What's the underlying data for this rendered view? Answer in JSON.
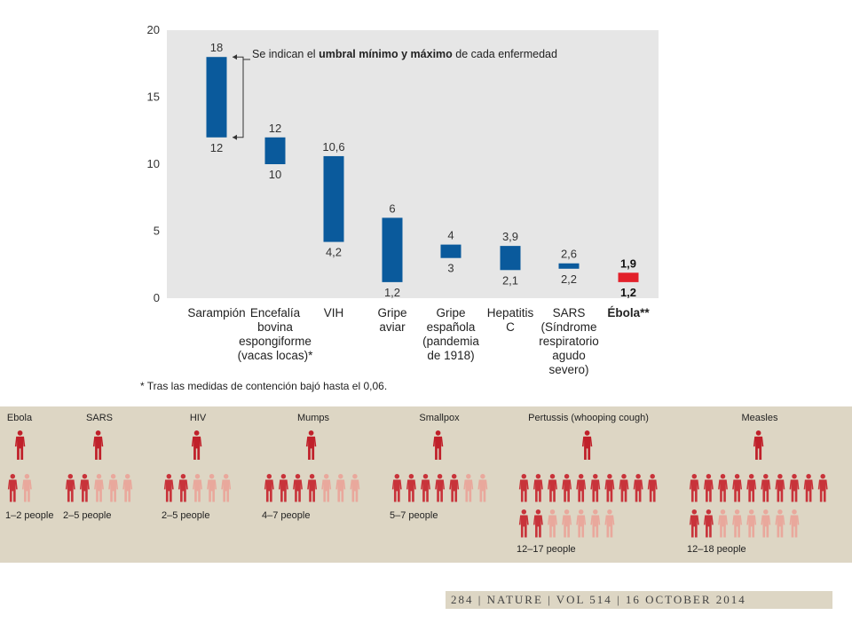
{
  "chart_data": [
    {
      "type": "bar",
      "subtype": "floating-range",
      "ylim": [
        0,
        20
      ],
      "yticks": [
        0,
        5,
        10,
        15,
        20
      ],
      "grid": false,
      "annotation": {
        "prefix": "Se indican el ",
        "bold": "umbral mínimo y máximo",
        "suffix": " de cada enfermedad"
      },
      "categories": [
        {
          "lines": [
            "Sarampión"
          ],
          "min": 12,
          "max": 18,
          "min_label": "12",
          "max_label": "18",
          "color": "#0a5a9c"
        },
        {
          "lines": [
            "Encefalía",
            "bovina",
            "espongiforme",
            "(vacas locas)*"
          ],
          "min": 10,
          "max": 12,
          "min_label": "10",
          "max_label": "12",
          "color": "#0a5a9c"
        },
        {
          "lines": [
            "VIH"
          ],
          "min": 4.2,
          "max": 10.6,
          "min_label": "4,2",
          "max_label": "10,6",
          "color": "#0a5a9c"
        },
        {
          "lines": [
            "Gripe",
            "aviar"
          ],
          "min": 1.2,
          "max": 6,
          "min_label": "1,2",
          "max_label": "6",
          "color": "#0a5a9c"
        },
        {
          "lines": [
            "Gripe",
            "española",
            "(pandemia",
            "de 1918)"
          ],
          "min": 3,
          "max": 4,
          "min_label": "3",
          "max_label": "4",
          "color": "#0a5a9c"
        },
        {
          "lines": [
            "Hepatitis",
            "C"
          ],
          "min": 2.1,
          "max": 3.9,
          "min_label": "2,1",
          "max_label": "3,9",
          "color": "#0a5a9c"
        },
        {
          "lines": [
            "SARS",
            "(Síndrome",
            "respiratorio",
            "agudo",
            "severo)"
          ],
          "min": 2.2,
          "max": 2.6,
          "min_label": "2,2",
          "max_label": "2,6",
          "color": "#0a5a9c"
        },
        {
          "lines": [
            "Ébola**"
          ],
          "min": 1.2,
          "max": 1.9,
          "min_label": "1,2",
          "max_label": "1,9",
          "color": "#e2202a",
          "bold": true
        }
      ],
      "footnote": "* Tras las medidas de contención bajó hasta el 0,06."
    },
    {
      "type": "pictogram",
      "colors": {
        "dark": "#c8333a",
        "light": "#e9a89c",
        "source": "#c0202a"
      },
      "diseases": [
        {
          "name": "Ebola",
          "min": 1,
          "max": 2,
          "label": "1–2 people"
        },
        {
          "name": "SARS",
          "min": 2,
          "max": 5,
          "label": "2–5 people"
        },
        {
          "name": "HIV",
          "min": 2,
          "max": 5,
          "label": "2–5 people"
        },
        {
          "name": "Mumps",
          "min": 4,
          "max": 7,
          "label": "4–7 people"
        },
        {
          "name": "Smallpox",
          "min": 5,
          "max": 7,
          "label": "5–7 people"
        },
        {
          "name": "Pertussis (whooping cough)",
          "min": 12,
          "max": 17,
          "label": "12–17 people"
        },
        {
          "name": "Measles",
          "min": 12,
          "max": 18,
          "label": "12–18 people"
        }
      ]
    }
  ],
  "footer": "284 | NATURE | VOL 514 | 16 OCTOBER 2014"
}
